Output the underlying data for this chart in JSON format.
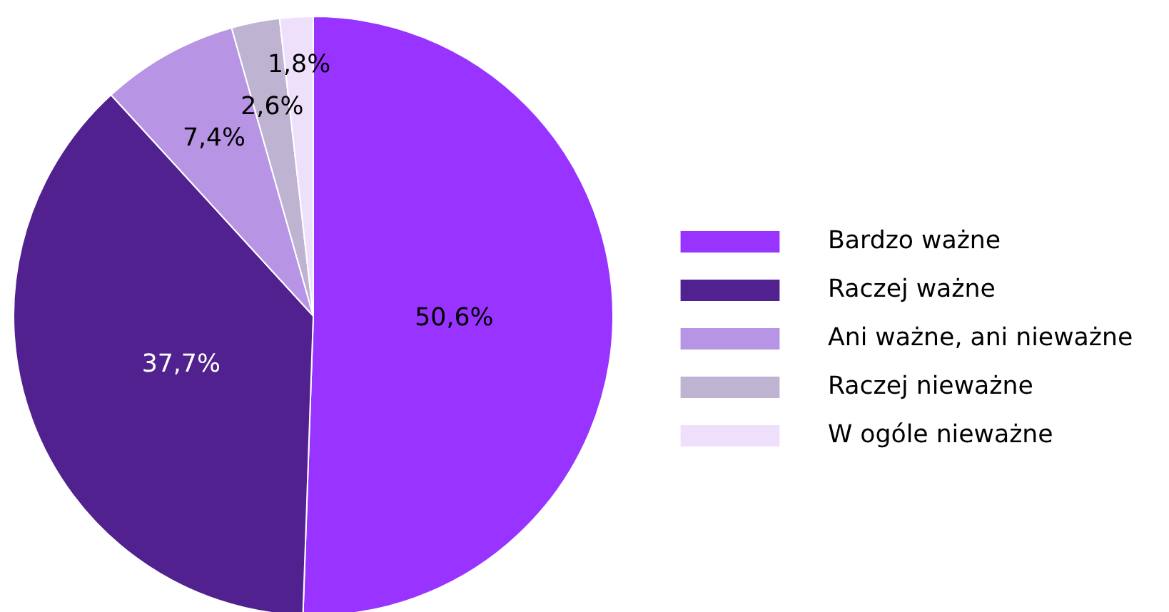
{
  "chart_data": {
    "type": "pie",
    "categories": [
      "Bardzo ważne",
      "Raczej ważne",
      "Ani ważne, ani nieważne",
      "Raczej nieważne",
      "W ogóle nieważne"
    ],
    "values": [
      50.6,
      37.7,
      7.4,
      2.6,
      1.8
    ],
    "colors": [
      "#9933ff",
      "#51228f",
      "#b794e4",
      "#bfb3d2",
      "#eee0fb"
    ],
    "value_labels": [
      "50,6%",
      "37,7%",
      "7,4%",
      "2,6%",
      "1,8%"
    ],
    "legend": "right"
  }
}
